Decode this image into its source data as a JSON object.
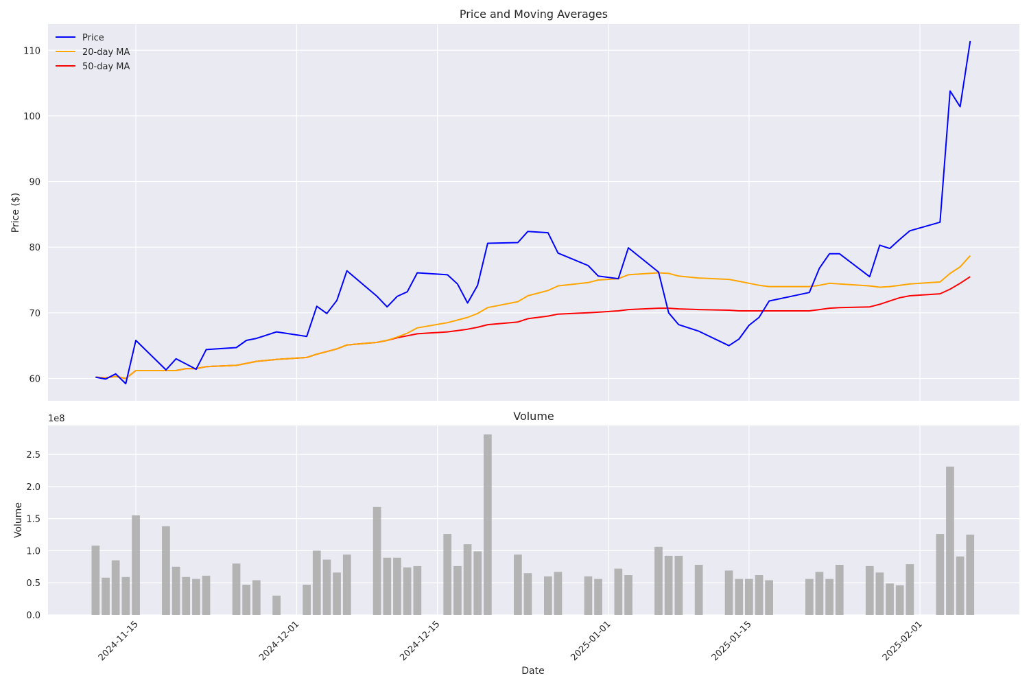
{
  "chart_data": [
    {
      "type": "line",
      "title": "Price and Moving Averages",
      "xlabel": "",
      "ylabel": "Price ($)",
      "ylim": [
        56.6,
        114.0
      ],
      "yticks": [
        60,
        70,
        80,
        90,
        100,
        110
      ],
      "grid": true,
      "legend": "top-left",
      "dates": [
        "2024-11-11",
        "2024-11-12",
        "2024-11-13",
        "2024-11-14",
        "2024-11-15",
        "2024-11-18",
        "2024-11-19",
        "2024-11-20",
        "2024-11-21",
        "2024-11-22",
        "2024-11-25",
        "2024-11-26",
        "2024-11-27",
        "2024-11-29",
        "2024-12-02",
        "2024-12-03",
        "2024-12-04",
        "2024-12-05",
        "2024-12-06",
        "2024-12-09",
        "2024-12-10",
        "2024-12-11",
        "2024-12-12",
        "2024-12-13",
        "2024-12-16",
        "2024-12-17",
        "2024-12-18",
        "2024-12-19",
        "2024-12-20",
        "2024-12-23",
        "2024-12-24",
        "2024-12-26",
        "2024-12-27",
        "2024-12-30",
        "2024-12-31",
        "2025-01-02",
        "2025-01-03",
        "2025-01-06",
        "2025-01-07",
        "2025-01-08",
        "2025-01-10",
        "2025-01-13",
        "2025-01-14",
        "2025-01-15",
        "2025-01-16",
        "2025-01-17",
        "2025-01-21",
        "2025-01-22",
        "2025-01-23",
        "2025-01-24",
        "2025-01-27",
        "2025-01-28",
        "2025-01-29",
        "2025-01-30",
        "2025-01-31",
        "2025-02-03",
        "2025-02-04",
        "2025-02-05",
        "2025-02-06"
      ],
      "series": [
        {
          "name": "Price",
          "color": "#0000ff",
          "values": [
            60.2,
            59.9,
            60.7,
            59.2,
            65.8,
            61.3,
            63.0,
            62.2,
            61.4,
            64.4,
            64.7,
            65.8,
            66.1,
            67.1,
            66.4,
            71.0,
            69.9,
            71.9,
            76.4,
            72.5,
            70.9,
            72.5,
            73.2,
            76.1,
            75.8,
            74.4,
            71.5,
            74.2,
            80.6,
            80.7,
            82.4,
            82.2,
            79.1,
            77.2,
            75.6,
            75.2,
            79.9,
            76.2,
            70.0,
            68.2,
            67.2,
            65.0,
            66.0,
            68.1,
            69.3,
            71.8,
            73.1,
            76.8,
            79.0,
            79.0,
            75.5,
            80.3,
            79.8,
            81.2,
            82.5,
            83.8,
            103.8,
            101.4,
            111.4
          ]
        },
        {
          "name": "20-day MA",
          "color": "#ffa500",
          "values": [
            60.2,
            60.1,
            60.3,
            60.0,
            61.2,
            61.2,
            61.2,
            61.5,
            61.5,
            61.8,
            62.0,
            62.3,
            62.6,
            62.9,
            63.2,
            63.7,
            64.1,
            64.5,
            65.1,
            65.5,
            65.8,
            66.3,
            66.9,
            67.7,
            68.5,
            68.9,
            69.3,
            69.9,
            70.8,
            71.7,
            72.6,
            73.4,
            74.1,
            74.6,
            75.0,
            75.2,
            75.8,
            76.1,
            76.0,
            75.6,
            75.3,
            75.1,
            74.8,
            74.5,
            74.2,
            74.0,
            74.0,
            74.2,
            74.5,
            74.4,
            74.1,
            73.9,
            74.0,
            74.2,
            74.4,
            74.7,
            76.0,
            77.0,
            78.7
          ]
        },
        {
          "name": "50-day MA",
          "color": "#ff0000",
          "values": [
            60.2,
            60.1,
            60.3,
            60.0,
            61.2,
            61.2,
            61.2,
            61.5,
            61.5,
            61.8,
            62.0,
            62.3,
            62.6,
            62.9,
            63.2,
            63.7,
            64.1,
            64.5,
            65.1,
            65.5,
            65.8,
            66.2,
            66.5,
            66.8,
            67.1,
            67.3,
            67.5,
            67.8,
            68.2,
            68.6,
            69.1,
            69.5,
            69.8,
            70.0,
            70.1,
            70.3,
            70.5,
            70.7,
            70.7,
            70.6,
            70.5,
            70.4,
            70.3,
            70.3,
            70.3,
            70.3,
            70.3,
            70.5,
            70.7,
            70.8,
            70.9,
            71.3,
            71.8,
            72.3,
            72.6,
            72.9,
            73.6,
            74.5,
            75.5
          ]
        }
      ]
    },
    {
      "type": "bar",
      "title": "Volume",
      "xlabel": "Date",
      "ylabel": "Volume",
      "offset_text": "1e8",
      "ylim": [
        0,
        2.95
      ],
      "yticks": [
        0.0,
        0.5,
        1.0,
        1.5,
        2.0,
        2.5
      ],
      "ytick_labels": [
        "0.0",
        "0.5",
        "1.0",
        "1.5",
        "2.0",
        "2.5"
      ],
      "xticks": [
        "2024-11-15",
        "2024-12-01",
        "2024-12-15",
        "2025-01-01",
        "2025-01-15",
        "2025-02-01"
      ],
      "grid": true,
      "bar_color": "#a9a9a9",
      "dates": [
        "2024-11-11",
        "2024-11-12",
        "2024-11-13",
        "2024-11-14",
        "2024-11-15",
        "2024-11-18",
        "2024-11-19",
        "2024-11-20",
        "2024-11-21",
        "2024-11-22",
        "2024-11-25",
        "2024-11-26",
        "2024-11-27",
        "2024-11-29",
        "2024-12-02",
        "2024-12-03",
        "2024-12-04",
        "2024-12-05",
        "2024-12-06",
        "2024-12-09",
        "2024-12-10",
        "2024-12-11",
        "2024-12-12",
        "2024-12-13",
        "2024-12-16",
        "2024-12-17",
        "2024-12-18",
        "2024-12-19",
        "2024-12-20",
        "2024-12-23",
        "2024-12-24",
        "2024-12-26",
        "2024-12-27",
        "2024-12-30",
        "2024-12-31",
        "2025-01-02",
        "2025-01-03",
        "2025-01-06",
        "2025-01-07",
        "2025-01-08",
        "2025-01-10",
        "2025-01-13",
        "2025-01-14",
        "2025-01-15",
        "2025-01-16",
        "2025-01-17",
        "2025-01-21",
        "2025-01-22",
        "2025-01-23",
        "2025-01-24",
        "2025-01-27",
        "2025-01-28",
        "2025-01-29",
        "2025-01-30",
        "2025-01-31",
        "2025-02-03",
        "2025-02-04",
        "2025-02-05",
        "2025-02-06"
      ],
      "values": [
        1.08,
        0.58,
        0.85,
        0.59,
        1.55,
        1.38,
        0.75,
        0.59,
        0.56,
        0.61,
        0.8,
        0.47,
        0.54,
        0.3,
        0.47,
        1.0,
        0.86,
        0.66,
        0.94,
        1.68,
        0.89,
        0.89,
        0.74,
        0.76,
        1.26,
        0.76,
        1.1,
        0.99,
        2.81,
        0.94,
        0.65,
        0.6,
        0.67,
        0.6,
        0.56,
        0.72,
        0.62,
        1.06,
        0.92,
        0.92,
        0.78,
        0.69,
        0.56,
        0.56,
        0.62,
        0.54,
        0.56,
        0.67,
        0.56,
        0.78,
        0.76,
        0.66,
        0.49,
        0.46,
        0.79,
        1.26,
        2.31,
        0.91,
        1.25
      ]
    }
  ]
}
